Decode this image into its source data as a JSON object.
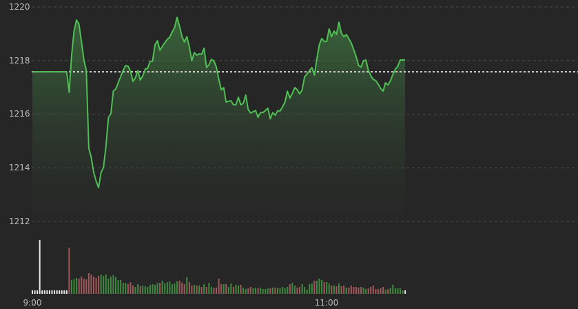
{
  "chart_data": {
    "type": "area",
    "x_start": "9:00",
    "x_interval": "1 minute",
    "x_ticks": [
      "9:00",
      "11:00"
    ],
    "y_ticks": [
      "1220",
      "1218",
      "1216",
      "1214",
      "1212"
    ],
    "ylim": [
      1212,
      1220
    ],
    "grid": true,
    "reference_line": 1217.58,
    "colors": {
      "line": "#4fbf55",
      "up": "#3f8a3f",
      "down": "#a0585a",
      "pre_open": "#e8e8e8",
      "background": "#262626",
      "grid": "#4a4a4a",
      "reference": "#d8d8d8"
    },
    "price": [
      1217.58,
      1217.58,
      1217.58,
      1217.58,
      1217.58,
      1217.58,
      1217.58,
      1217.58,
      1217.58,
      1217.58,
      1217.58,
      1217.58,
      1217.58,
      1217.58,
      1217.58,
      1216.81,
      1218.2,
      1219.1,
      1219.51,
      1219.36,
      1218.71,
      1218.02,
      1217.63,
      1214.73,
      1214.39,
      1213.83,
      1213.5,
      1213.26,
      1213.83,
      1214.01,
      1214.8,
      1215.88,
      1216.01,
      1216.86,
      1216.94,
      1217.17,
      1217.4,
      1217.63,
      1217.81,
      1217.79,
      1217.61,
      1217.22,
      1217.35,
      1217.63,
      1217.27,
      1217.43,
      1217.68,
      1217.71,
      1217.97,
      1217.97,
      1218.59,
      1218.74,
      1218.38,
      1218.53,
      1218.66,
      1218.79,
      1218.87,
      1219.07,
      1219.23,
      1219.61,
      1219.28,
      1218.89,
      1218.69,
      1218.89,
      1218.51,
      1217.99,
      1218.3,
      1218.2,
      1218.25,
      1218.23,
      1218.46,
      1217.74,
      1217.84,
      1218.04,
      1217.99,
      1217.76,
      1217.3,
      1216.91,
      1216.99,
      1216.45,
      1216.48,
      1216.5,
      1216.35,
      1216.35,
      1216.63,
      1216.35,
      1216.4,
      1216.71,
      1216.17,
      1216.04,
      1216.09,
      1216.14,
      1215.88,
      1216.06,
      1216.06,
      1216.14,
      1216.22,
      1215.83,
      1216.06,
      1215.96,
      1216.12,
      1216.12,
      1216.27,
      1216.45,
      1216.86,
      1216.6,
      1216.78,
      1216.99,
      1216.91,
      1216.76,
      1216.91,
      1217.4,
      1217.5,
      1217.63,
      1217.74,
      1217.45,
      1218.07,
      1218.59,
      1218.82,
      1218.71,
      1218.71,
      1219.18,
      1218.89,
      1219.1,
      1218.97,
      1219.43,
      1219.02,
      1218.89,
      1218.97,
      1218.82,
      1218.66,
      1218.41,
      1218.15,
      1217.81,
      1217.76,
      1217.99,
      1218.02,
      1217.63,
      1217.43,
      1217.3,
      1217.25,
      1217.12,
      1216.96,
      1216.86,
      1217.17,
      1217.09,
      1217.25,
      1217.48,
      1217.68,
      1217.79,
      1218.02,
      1218.02,
      1218.02
    ],
    "volume": [
      5,
      5,
      5,
      78,
      5,
      5,
      5,
      5,
      5,
      5,
      5,
      5,
      5,
      5,
      5,
      67,
      20,
      21,
      23,
      22,
      25,
      22,
      21,
      30,
      28,
      25,
      23,
      26,
      28,
      26,
      28,
      22,
      25,
      27,
      24,
      20,
      20,
      16,
      16,
      14,
      17,
      12,
      10,
      14,
      11,
      12,
      11,
      10,
      13,
      14,
      13,
      16,
      16,
      19,
      15,
      17,
      18,
      14,
      15,
      18,
      19,
      16,
      14,
      24,
      17,
      12,
      13,
      12,
      12,
      10,
      14,
      10,
      16,
      10,
      9,
      9,
      22,
      14,
      14,
      14,
      10,
      15,
      10,
      13,
      12,
      13,
      9,
      7,
      8,
      10,
      8,
      9,
      8,
      9,
      7,
      7,
      8,
      8,
      9,
      9,
      9,
      8,
      10,
      8,
      10,
      14,
      16,
      12,
      9,
      10,
      14,
      10,
      6,
      14,
      15,
      19,
      19,
      22,
      20,
      17,
      17,
      15,
      12,
      12,
      11,
      15,
      11,
      12,
      9,
      9,
      12,
      10,
      10,
      9,
      10,
      9,
      7,
      8,
      10,
      12,
      7,
      7,
      8,
      10,
      6,
      7,
      9,
      13,
      8,
      8,
      8,
      5,
      5
    ],
    "pre_open_count": 15
  }
}
